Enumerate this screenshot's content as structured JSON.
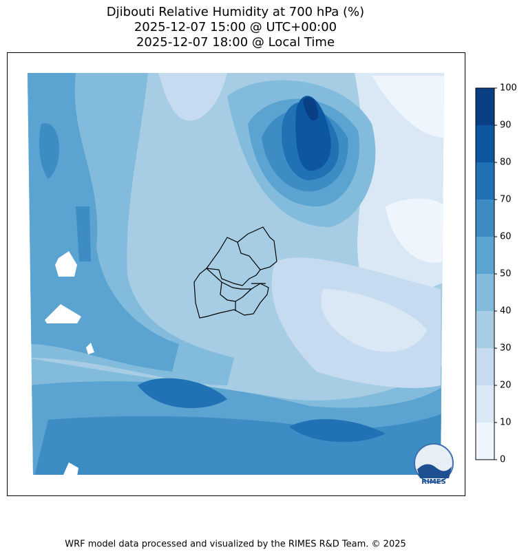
{
  "title": [
    "Djibouti Relative Humidity at 700 hPa (%)",
    "2025-12-07 15:00 @ UTC+00:00",
    "2025-12-07 18:00 @ Local Time"
  ],
  "colorbar": {
    "ticks": [
      0,
      10,
      20,
      30,
      40,
      50,
      60,
      70,
      80,
      90,
      100
    ],
    "colors": [
      "#eef5fc",
      "#dae8f6",
      "#c6dbef",
      "#a6cde3",
      "#82bbdb",
      "#5ba3d0",
      "#3d8cc4",
      "#2171b5",
      "#0d57a1",
      "#083f85"
    ]
  },
  "logo": "RIMES",
  "footer": "WRF model data processed and visualized by the RIMES R&D Team. © 2025"
}
